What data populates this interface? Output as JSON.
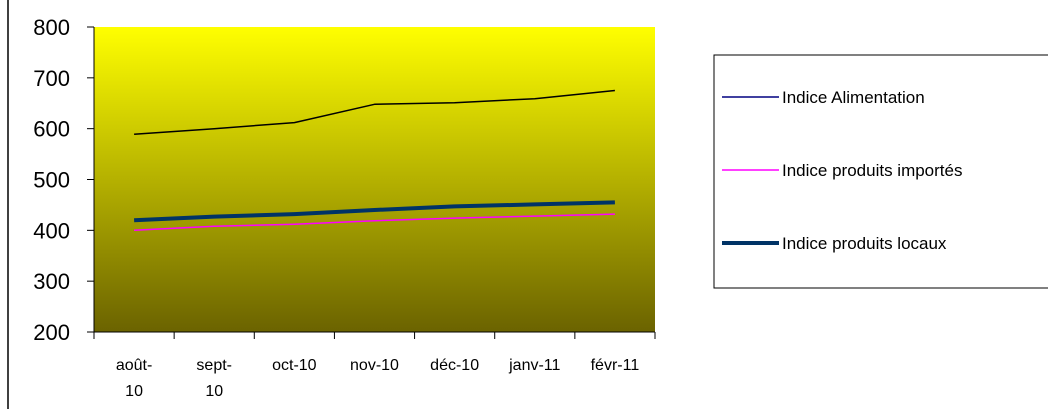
{
  "chart_data": {
    "type": "line",
    "title": "",
    "xlabel": "",
    "ylabel": "",
    "categories": [
      [
        "août-",
        "10"
      ],
      [
        "sept-",
        "10"
      ],
      [
        "oct-10"
      ],
      [
        "nov-10"
      ],
      [
        "déc-10"
      ],
      [
        "janv-11"
      ],
      [
        "févr-11"
      ]
    ],
    "ylim": [
      200,
      800
    ],
    "yticks": [
      200,
      300,
      400,
      500,
      600,
      700,
      800
    ],
    "grid": false,
    "legend_position": "right",
    "plot_background": {
      "gradient_top": "#ffff00",
      "gradient_bottom": "#6b6300"
    },
    "series": [
      {
        "name": "Indice Alimentation",
        "color": "#000000",
        "legend_color": "#000080",
        "weight": "thin",
        "values": [
          589,
          600,
          612,
          648,
          651,
          659,
          675
        ]
      },
      {
        "name": "Indice produits importés",
        "color": "#ff00ff",
        "legend_color": "#ff00ff",
        "weight": "thin",
        "values": [
          400,
          408,
          412,
          419,
          424,
          428,
          432
        ]
      },
      {
        "name": "Indice produits locaux",
        "color": "#003366",
        "legend_color": "#003366",
        "weight": "thick",
        "values": [
          420,
          427,
          432,
          440,
          447,
          451,
          455
        ]
      }
    ]
  }
}
